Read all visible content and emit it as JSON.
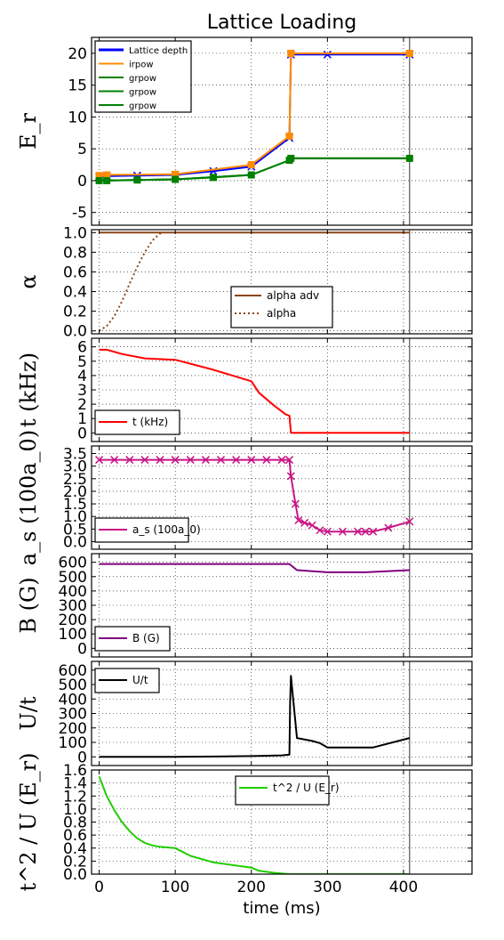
{
  "title": "Lattice Loading",
  "xlabel": "time (ms)",
  "x_ticks": [
    0,
    100,
    200,
    300,
    400
  ],
  "xlim": [
    -10,
    490
  ],
  "vline_x": 408,
  "chart_data": [
    {
      "type": "line",
      "ylabel": "E_r",
      "ylim": [
        -7,
        22.5
      ],
      "y_ticks": [
        -5,
        0,
        5,
        10,
        15,
        20
      ],
      "grid": true,
      "legend_placement": "top-left",
      "series": [
        {
          "name": "Lattice depth",
          "color": "#0000ff",
          "marker": "x",
          "x": [
            0,
            10,
            50,
            100,
            150,
            200,
            250,
            252,
            300,
            408
          ],
          "y": [
            0.6,
            0.7,
            0.8,
            0.9,
            1.5,
            2.2,
            6.7,
            19.8,
            19.8,
            19.8
          ]
        },
        {
          "name": "irpow",
          "color": "#ff8c00",
          "marker": "s",
          "x": [
            0,
            10,
            100,
            200,
            250,
            252,
            408
          ],
          "y": [
            0.8,
            0.9,
            1.0,
            2.5,
            7.0,
            20.0,
            20.0
          ]
        },
        {
          "name": "grpow",
          "color": "#008000",
          "marker": "s",
          "x": [
            0,
            10,
            50,
            100,
            150,
            200,
            250,
            252,
            408
          ],
          "y": [
            0.0,
            0.0,
            0.1,
            0.2,
            0.5,
            0.9,
            3.2,
            3.5,
            3.5
          ]
        },
        {
          "name": "grpow",
          "color": "#008000",
          "marker": "",
          "x": [
            0,
            100,
            200,
            250,
            252,
            408
          ],
          "y": [
            0.0,
            0.2,
            0.9,
            3.2,
            3.5,
            3.5
          ]
        },
        {
          "name": "grpow",
          "color": "#008000",
          "marker": "",
          "x": [
            0,
            100,
            200,
            250,
            252,
            408
          ],
          "y": [
            0.0,
            0.2,
            0.9,
            3.2,
            3.5,
            3.5
          ]
        }
      ]
    },
    {
      "type": "line",
      "ylabel": "α",
      "ylim": [
        -0.03,
        1.03
      ],
      "y_ticks": [
        0.0,
        0.2,
        0.4,
        0.6,
        0.8,
        1.0
      ],
      "grid": true,
      "legend_placement": "lower-center",
      "series": [
        {
          "name": "alpha adv",
          "color": "#8b4513",
          "dash": "",
          "x": [
            0,
            408
          ],
          "y": [
            1.0,
            1.0
          ]
        },
        {
          "name": "alpha",
          "color": "#8b4513",
          "dash": "2,3",
          "x": [
            0,
            10,
            20,
            30,
            40,
            50,
            60,
            70,
            80,
            85
          ],
          "y": [
            0.0,
            0.05,
            0.15,
            0.3,
            0.48,
            0.65,
            0.8,
            0.92,
            0.99,
            1.0
          ]
        }
      ]
    },
    {
      "type": "line",
      "ylabel": "t (kHz)",
      "ylim": [
        -0.6,
        6.6
      ],
      "y_ticks": [
        0,
        1,
        2,
        3,
        4,
        5,
        6
      ],
      "grid": true,
      "legend_placement": "lower-left",
      "series": [
        {
          "name": "t (kHz)",
          "color": "#ff0000",
          "x": [
            0,
            10,
            30,
            60,
            100,
            150,
            200,
            210,
            230,
            245,
            250,
            252,
            408
          ],
          "y": [
            5.8,
            5.8,
            5.5,
            5.2,
            5.1,
            4.4,
            3.6,
            2.8,
            1.9,
            1.3,
            1.2,
            0.0,
            0.0
          ]
        }
      ]
    },
    {
      "type": "line",
      "ylabel": "a_s (100a_0)",
      "ylim": [
        -0.3,
        3.8
      ],
      "y_ticks": [
        0.0,
        0.5,
        1.0,
        1.5,
        2.0,
        2.5,
        3.0,
        3.5
      ],
      "grid": true,
      "legend_placement": "lower-left",
      "series": [
        {
          "name": "a_s (100a_0)",
          "color": "#c71585",
          "marker": "x",
          "x": [
            0,
            20,
            40,
            60,
            80,
            100,
            120,
            140,
            160,
            180,
            200,
            220,
            240,
            250,
            252,
            258,
            262,
            270,
            280,
            290,
            300,
            320,
            340,
            350,
            360,
            380,
            408
          ],
          "y": [
            3.25,
            3.25,
            3.25,
            3.25,
            3.25,
            3.25,
            3.25,
            3.25,
            3.25,
            3.25,
            3.25,
            3.25,
            3.25,
            3.25,
            2.6,
            1.5,
            0.85,
            0.75,
            0.65,
            0.45,
            0.4,
            0.4,
            0.4,
            0.4,
            0.4,
            0.55,
            0.8
          ]
        }
      ]
    },
    {
      "type": "line",
      "ylabel": "B (G)",
      "ylim": [
        -60,
        660
      ],
      "y_ticks": [
        0,
        100,
        200,
        300,
        400,
        500,
        600
      ],
      "grid": true,
      "legend_placement": "lower-left",
      "series": [
        {
          "name": "B (G)",
          "color": "#800080",
          "x": [
            0,
            100,
            200,
            250,
            260,
            300,
            350,
            408
          ],
          "y": [
            588,
            588,
            588,
            588,
            545,
            530,
            530,
            545
          ]
        }
      ]
    },
    {
      "type": "line",
      "ylabel": "U/t",
      "ylim": [
        -60,
        660
      ],
      "y_ticks": [
        0,
        100,
        200,
        300,
        400,
        500,
        600
      ],
      "grid": true,
      "legend_placement": "top-left",
      "series": [
        {
          "name": "U/t",
          "color": "#000000",
          "x": [
            0,
            100,
            200,
            240,
            250,
            251,
            252,
            254,
            260,
            280,
            290,
            300,
            360,
            408
          ],
          "y": [
            0,
            0,
            5,
            10,
            15,
            380,
            560,
            450,
            130,
            110,
            95,
            65,
            65,
            130
          ]
        }
      ]
    },
    {
      "type": "line",
      "ylabel": "t^2 / U (E_r)",
      "ylim": [
        0.0,
        1.6
      ],
      "y_ticks": [
        0.0,
        0.2,
        0.4,
        0.6,
        0.8,
        1.0,
        1.2,
        1.4,
        1.6
      ],
      "grid": true,
      "legend_placement": "top-center",
      "series": [
        {
          "name": "t^2 / U (E_r)",
          "color": "#22cc00",
          "x": [
            0,
            5,
            10,
            20,
            30,
            40,
            50,
            60,
            70,
            80,
            90,
            100,
            120,
            150,
            200,
            210,
            230,
            250,
            270,
            408
          ],
          "y": [
            1.5,
            1.35,
            1.2,
            0.98,
            0.8,
            0.66,
            0.55,
            0.48,
            0.44,
            0.42,
            0.41,
            0.4,
            0.28,
            0.18,
            0.1,
            0.05,
            0.02,
            0.0,
            0.0,
            0.0
          ]
        }
      ]
    }
  ]
}
